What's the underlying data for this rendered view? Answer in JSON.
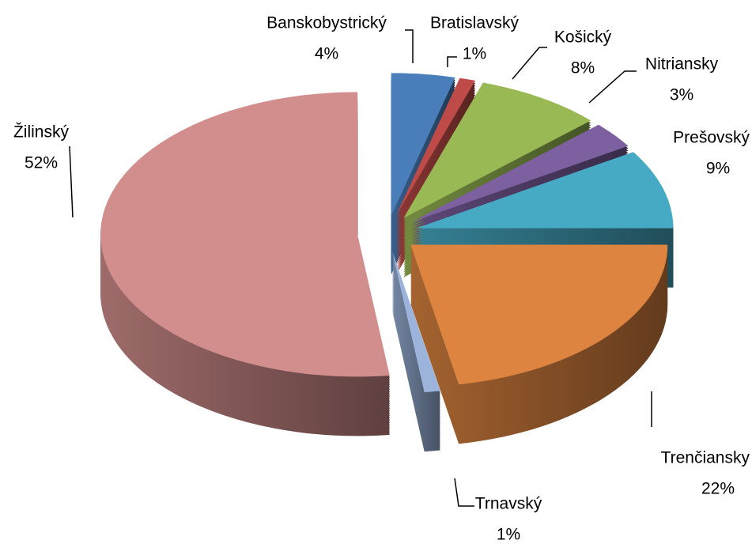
{
  "chart_data": {
    "type": "pie",
    "categories": [
      "Banskobystrický",
      "Bratislavský",
      "Košický",
      "Nitriansky",
      "Prešovský",
      "Trenčiansky",
      "Trnavský",
      "Žilinský"
    ],
    "values": [
      4,
      1,
      8,
      3,
      9,
      22,
      1,
      52
    ],
    "value_labels": [
      "4%",
      "1%",
      "8%",
      "3%",
      "9%",
      "22%",
      "1%",
      "52%"
    ],
    "colors": [
      "#4a7ebb",
      "#be4b48",
      "#98b954",
      "#7d60a0",
      "#46aac5",
      "#dc8440",
      "#9cb4dc",
      "#d28e8d"
    ]
  }
}
